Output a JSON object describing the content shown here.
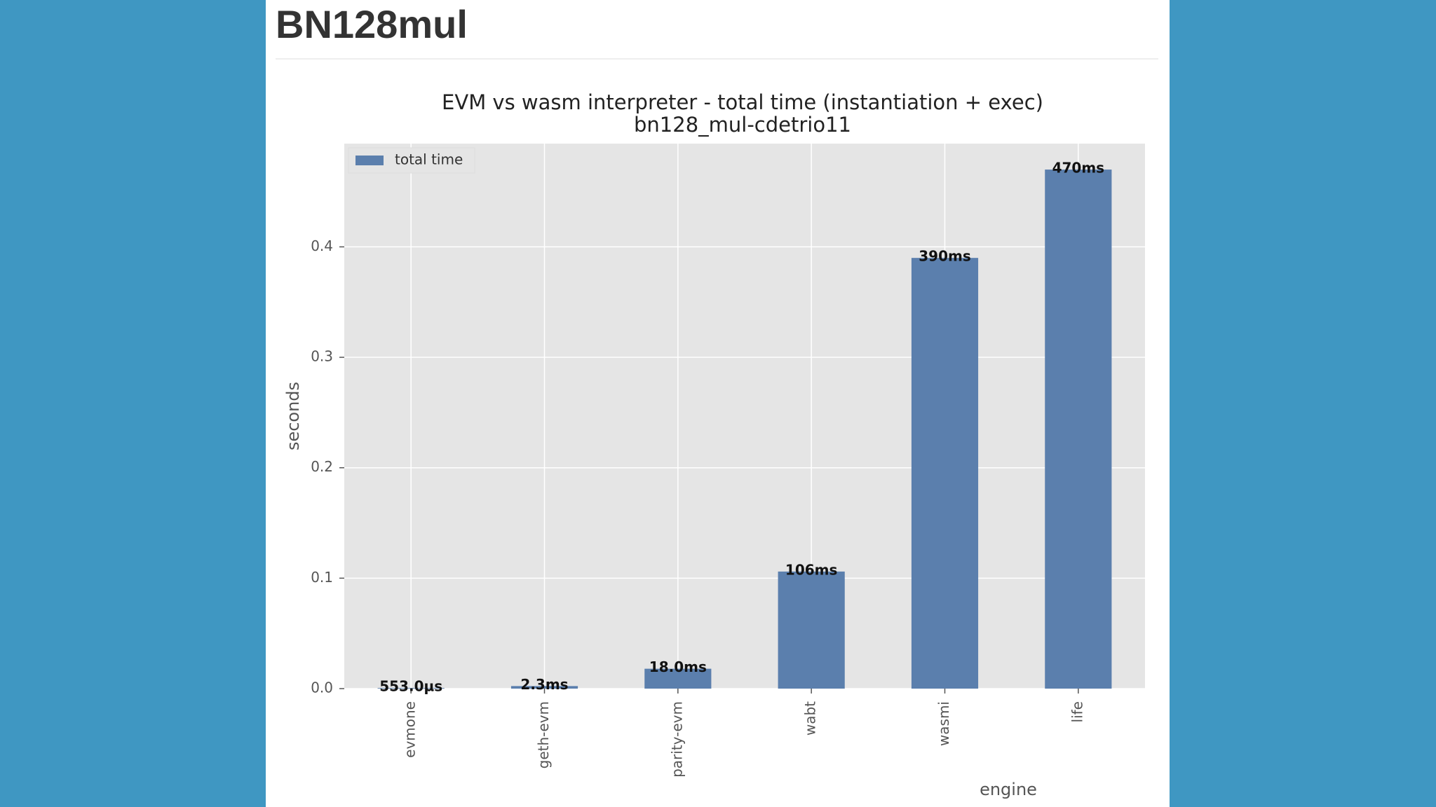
{
  "heading": "BN128mul",
  "chart_data": {
    "type": "bar",
    "title": "EVM vs wasm interpreter - total time (instantiation + exec)",
    "subtitle": "bn128_mul-cdetrio11",
    "x_label": "engine",
    "y_label": "seconds",
    "categories": [
      "evmone",
      "geth-evm",
      "parity-evm",
      "wabt",
      "wasmi",
      "life"
    ],
    "series": [
      {
        "name": "total time",
        "color": "#5b7fad",
        "values": [
          0.000553,
          0.0023,
          0.018,
          0.106,
          0.39,
          0.47
        ],
        "value_labels": [
          "553.0µs",
          "2.3ms",
          "18.0ms",
          "106ms",
          "390ms",
          "470ms"
        ]
      }
    ],
    "ylim": [
      0,
      0.4935
    ],
    "yticks": [
      {
        "value": 0,
        "label": "0.0"
      },
      0.1,
      0.2,
      0.3,
      0.4
    ],
    "grid": true,
    "legend": "upper left"
  }
}
